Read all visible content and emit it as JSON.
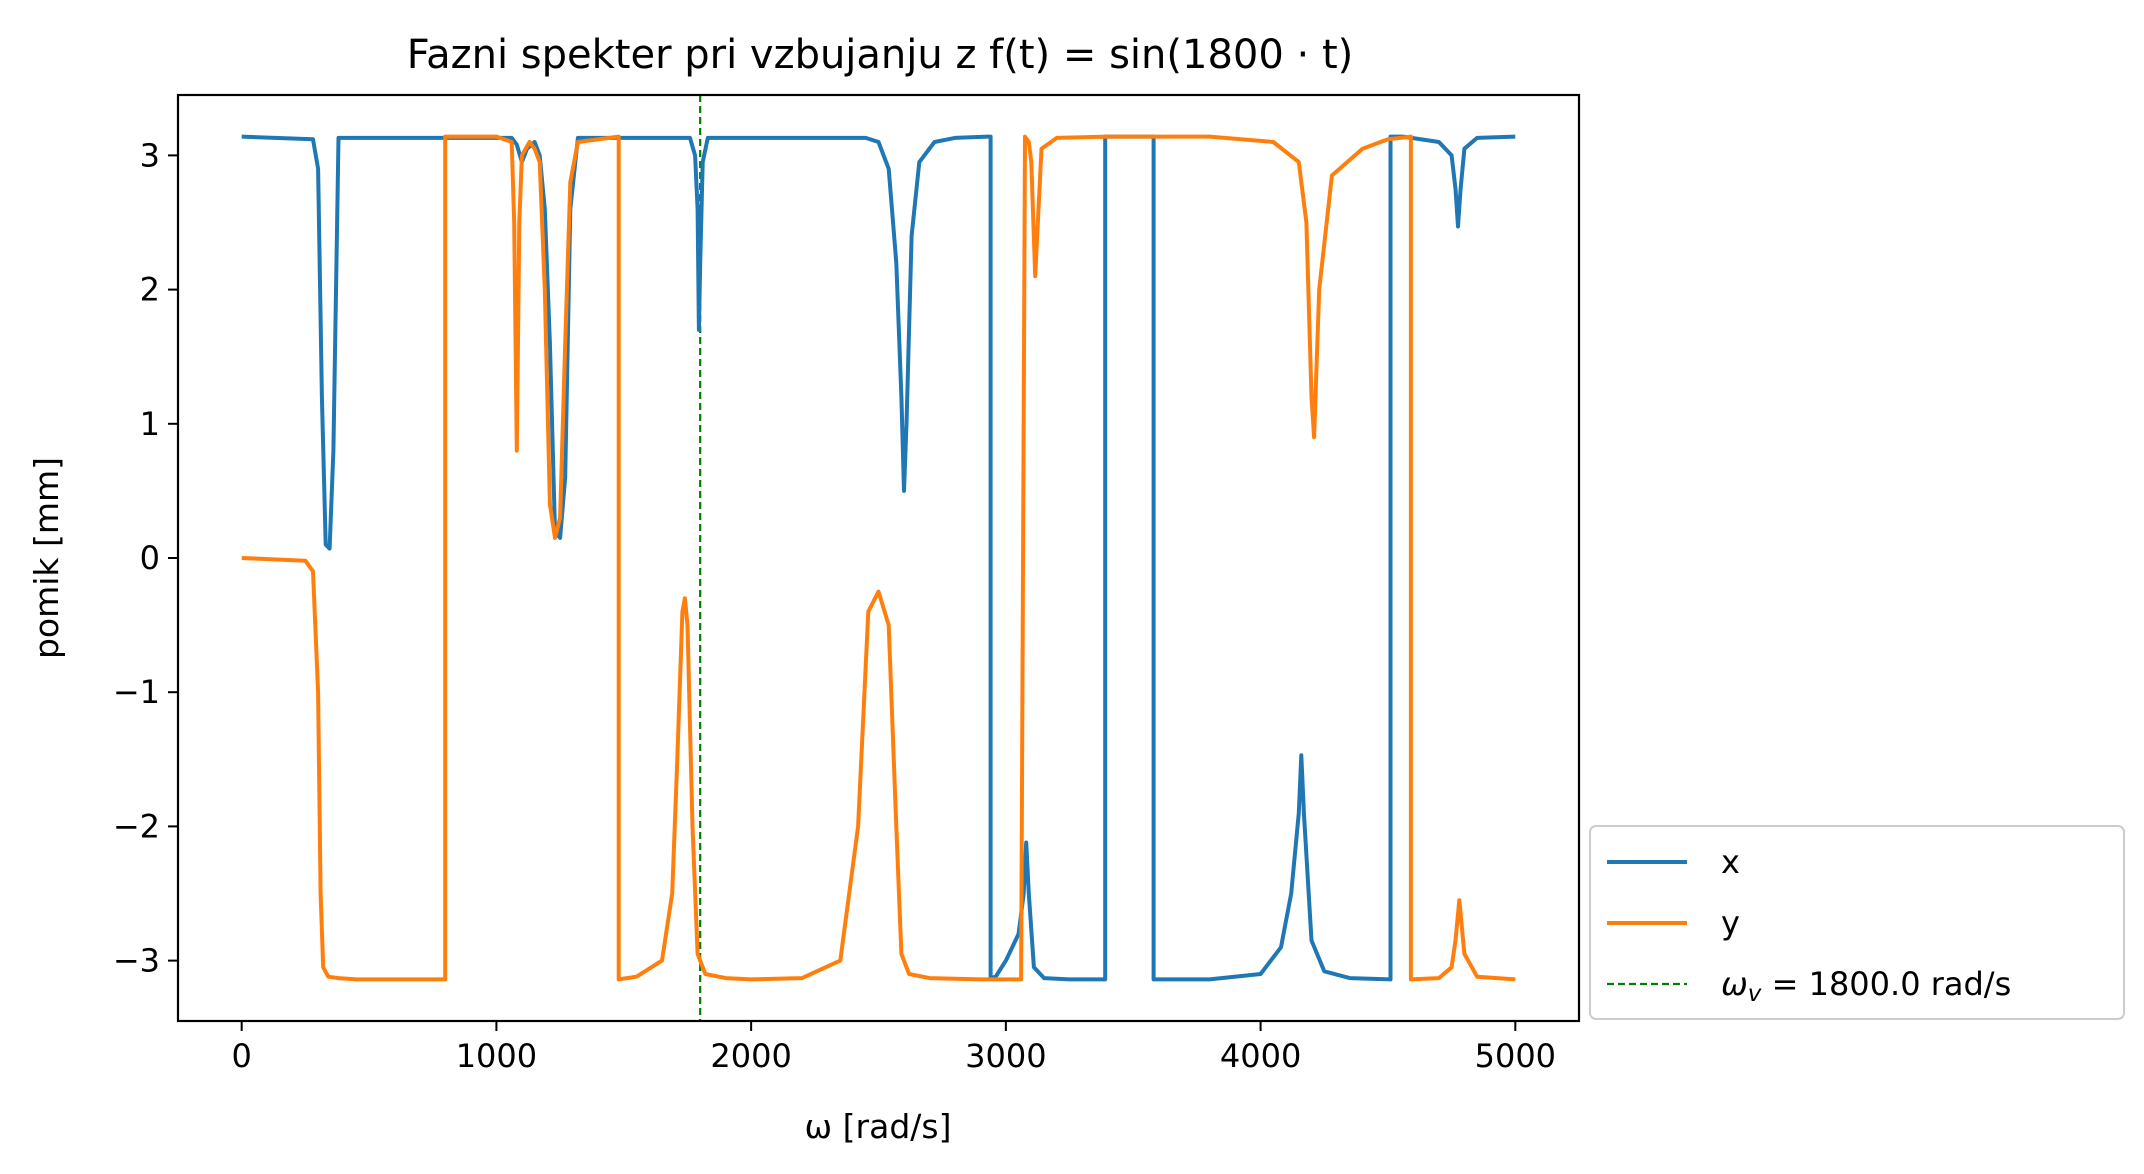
{
  "chart_data": {
    "type": "line",
    "title": "Fazni spekter pri vzbujanju z f(t) = sin(1800 · t)",
    "xlabel": "ω [rad/s]",
    "ylabel": "pomik [mm]",
    "xlim": [
      -250,
      5250
    ],
    "ylim": [
      -3.45,
      3.45
    ],
    "xticks": [
      0,
      1000,
      2000,
      3000,
      4000,
      5000
    ],
    "yticks": [
      -3,
      -2,
      -1,
      0,
      1,
      2,
      3
    ],
    "xtick_labels": [
      "0",
      "1000",
      "2000",
      "3000",
      "4000",
      "5000"
    ],
    "ytick_labels": [
      "−3",
      "−2",
      "−1",
      "0",
      "1",
      "2",
      "3"
    ],
    "grid": false,
    "legend_position": "outside-lower-right",
    "series": [
      {
        "name": "x",
        "color": "#1f77b4",
        "x": [
          0,
          280,
          300,
          315,
          330,
          345,
          360,
          380,
          1060,
          1080,
          1100,
          1120,
          1150,
          1170,
          1190,
          1210,
          1230,
          1250,
          1270,
          1290,
          1320,
          1760,
          1780,
          1790,
          1795,
          1800,
          1810,
          1830,
          2450,
          2500,
          2540,
          2570,
          2590,
          2600,
          2610,
          2630,
          2660,
          2720,
          2800,
          2930,
          2940,
          2940.1,
          2960,
          3000,
          3050,
          3070,
          3080,
          3090,
          3110,
          3150,
          3250,
          3390,
          3390.1,
          3580,
          3580.1,
          3800,
          4000,
          4080,
          4120,
          4150,
          4160,
          4170,
          4200,
          4250,
          4350,
          4510,
          4510.1,
          4560,
          4700,
          4750,
          4765,
          4775,
          4785,
          4800,
          4850,
          5000
        ],
        "y": [
          3.14,
          3.12,
          2.9,
          1.2,
          0.1,
          0.07,
          0.8,
          3.13,
          3.13,
          3.08,
          2.95,
          3.05,
          3.1,
          3.0,
          2.6,
          1.6,
          0.2,
          0.15,
          0.6,
          2.6,
          3.13,
          3.13,
          3.0,
          2.6,
          1.7,
          2.2,
          2.95,
          3.13,
          3.13,
          3.1,
          2.9,
          2.2,
          1.2,
          0.5,
          1.0,
          2.4,
          2.95,
          3.1,
          3.13,
          3.14,
          3.14,
          -3.13,
          -3.12,
          -3.0,
          -2.8,
          -2.5,
          -2.12,
          -2.5,
          -3.05,
          -3.13,
          -3.14,
          -3.14,
          3.14,
          3.14,
          -3.14,
          -3.14,
          -3.1,
          -2.9,
          -2.5,
          -1.9,
          -1.47,
          -1.9,
          -2.85,
          -3.08,
          -3.13,
          -3.14,
          3.14,
          3.14,
          3.1,
          3.0,
          2.75,
          2.47,
          2.75,
          3.05,
          3.13,
          3.14
        ]
      },
      {
        "name": "y",
        "color": "#ff7f0e",
        "x": [
          0,
          250,
          280,
          300,
          310,
          320,
          340,
          380,
          450,
          600,
          799,
          799.1,
          1000,
          1060,
          1070,
          1080,
          1090,
          1100,
          1130,
          1150,
          1170,
          1190,
          1210,
          1230,
          1250,
          1270,
          1290,
          1320,
          1480,
          1480.1,
          1550,
          1650,
          1690,
          1710,
          1730,
          1740,
          1750,
          1770,
          1790,
          1820,
          1900,
          2000,
          2200,
          2350,
          2420,
          2460,
          2500,
          2540,
          2570,
          2590,
          2620,
          2700,
          2900,
          2940,
          3060,
          3075,
          3090,
          3100,
          3115,
          3140,
          3200,
          3400,
          3800,
          4050,
          4150,
          4180,
          4200,
          4210,
          4230,
          4280,
          4400,
          4500,
          4590,
          4590.1,
          4700,
          4750,
          4765,
          4780,
          4800,
          4850,
          5000
        ],
        "y": [
          0.0,
          -0.02,
          -0.1,
          -1.0,
          -2.5,
          -3.05,
          -3.12,
          -3.13,
          -3.14,
          -3.14,
          -3.14,
          3.14,
          3.14,
          3.1,
          2.5,
          0.8,
          2.5,
          3.0,
          3.1,
          3.05,
          2.95,
          2.0,
          0.4,
          0.15,
          0.3,
          1.6,
          2.8,
          3.1,
          3.14,
          -3.14,
          -3.12,
          -3.0,
          -2.5,
          -1.5,
          -0.4,
          -0.3,
          -0.5,
          -2.0,
          -2.95,
          -3.1,
          -3.13,
          -3.14,
          -3.13,
          -3.0,
          -2.0,
          -0.4,
          -0.25,
          -0.5,
          -2.0,
          -2.95,
          -3.1,
          -3.13,
          -3.14,
          -3.14,
          -3.14,
          3.14,
          3.1,
          2.95,
          2.1,
          3.05,
          3.13,
          3.14,
          3.14,
          3.1,
          2.95,
          2.5,
          1.2,
          0.9,
          2.0,
          2.85,
          3.05,
          3.12,
          3.14,
          -3.14,
          -3.13,
          -3.05,
          -2.85,
          -2.55,
          -2.95,
          -3.12,
          -3.14
        ]
      },
      {
        "name": "ω_v = 1800.0 rad/s",
        "color": "#008000",
        "style": "dashed",
        "vline": 1800
      }
    ]
  }
}
